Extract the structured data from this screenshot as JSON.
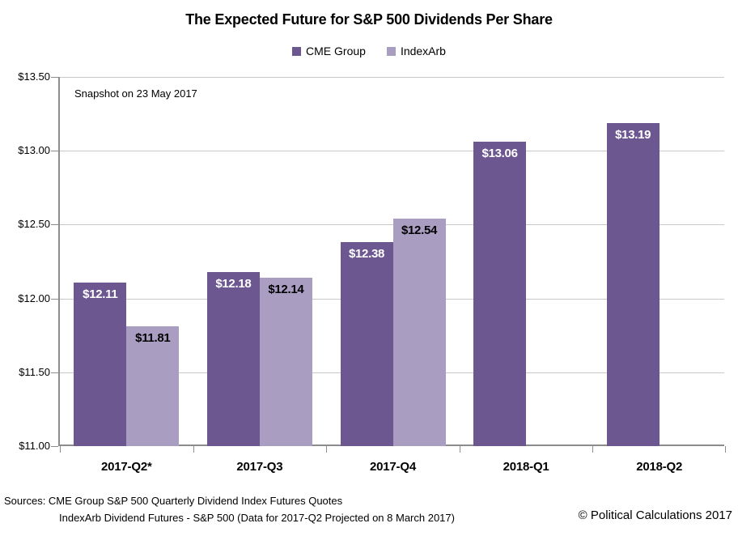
{
  "title": "The Expected Future for S&P 500 Dividends Per Share",
  "annotation": "Snapshot on 23 May 2017",
  "legend": [
    {
      "label": "CME Group",
      "color": "#6c5791"
    },
    {
      "label": "IndexArb",
      "color": "#a99dc2"
    }
  ],
  "chart_data": {
    "type": "bar",
    "title": "The Expected Future for S&P 500 Dividends Per Share",
    "categories": [
      "2017-Q2*",
      "2017-Q3",
      "2017-Q4",
      "2018-Q1",
      "2018-Q2"
    ],
    "series": [
      {
        "name": "CME Group",
        "color": "#6c5791",
        "label_color": "#ffffff",
        "values": [
          12.11,
          12.18,
          12.38,
          13.06,
          13.19
        ]
      },
      {
        "name": "IndexArb",
        "color": "#a99dc2",
        "label_color": "#000000",
        "values": [
          11.81,
          12.14,
          12.54,
          null,
          null
        ]
      }
    ],
    "ylim": [
      11.0,
      13.5
    ],
    "ytick_step": 0.5,
    "ytick_labels": [
      "$11.00",
      "$11.50",
      "$12.00",
      "$12.50",
      "$13.00",
      "$13.50"
    ],
    "value_prefix": "$",
    "grid": true,
    "legend_position": "top",
    "annotation": "Snapshot on 23 May 2017"
  },
  "footer": {
    "sources_line1": "Sources: CME Group S&P 500 Quarterly Dividend Index Futures Quotes",
    "sources_line2": "IndexArb Dividend Futures - S&P 500 (Data for 2017-Q2 Projected on 8 March 2017)",
    "copyright": "© Political Calculations 2017"
  },
  "colors": {
    "gridline": "#c9c9c9",
    "axis": "#8c8c8c"
  }
}
